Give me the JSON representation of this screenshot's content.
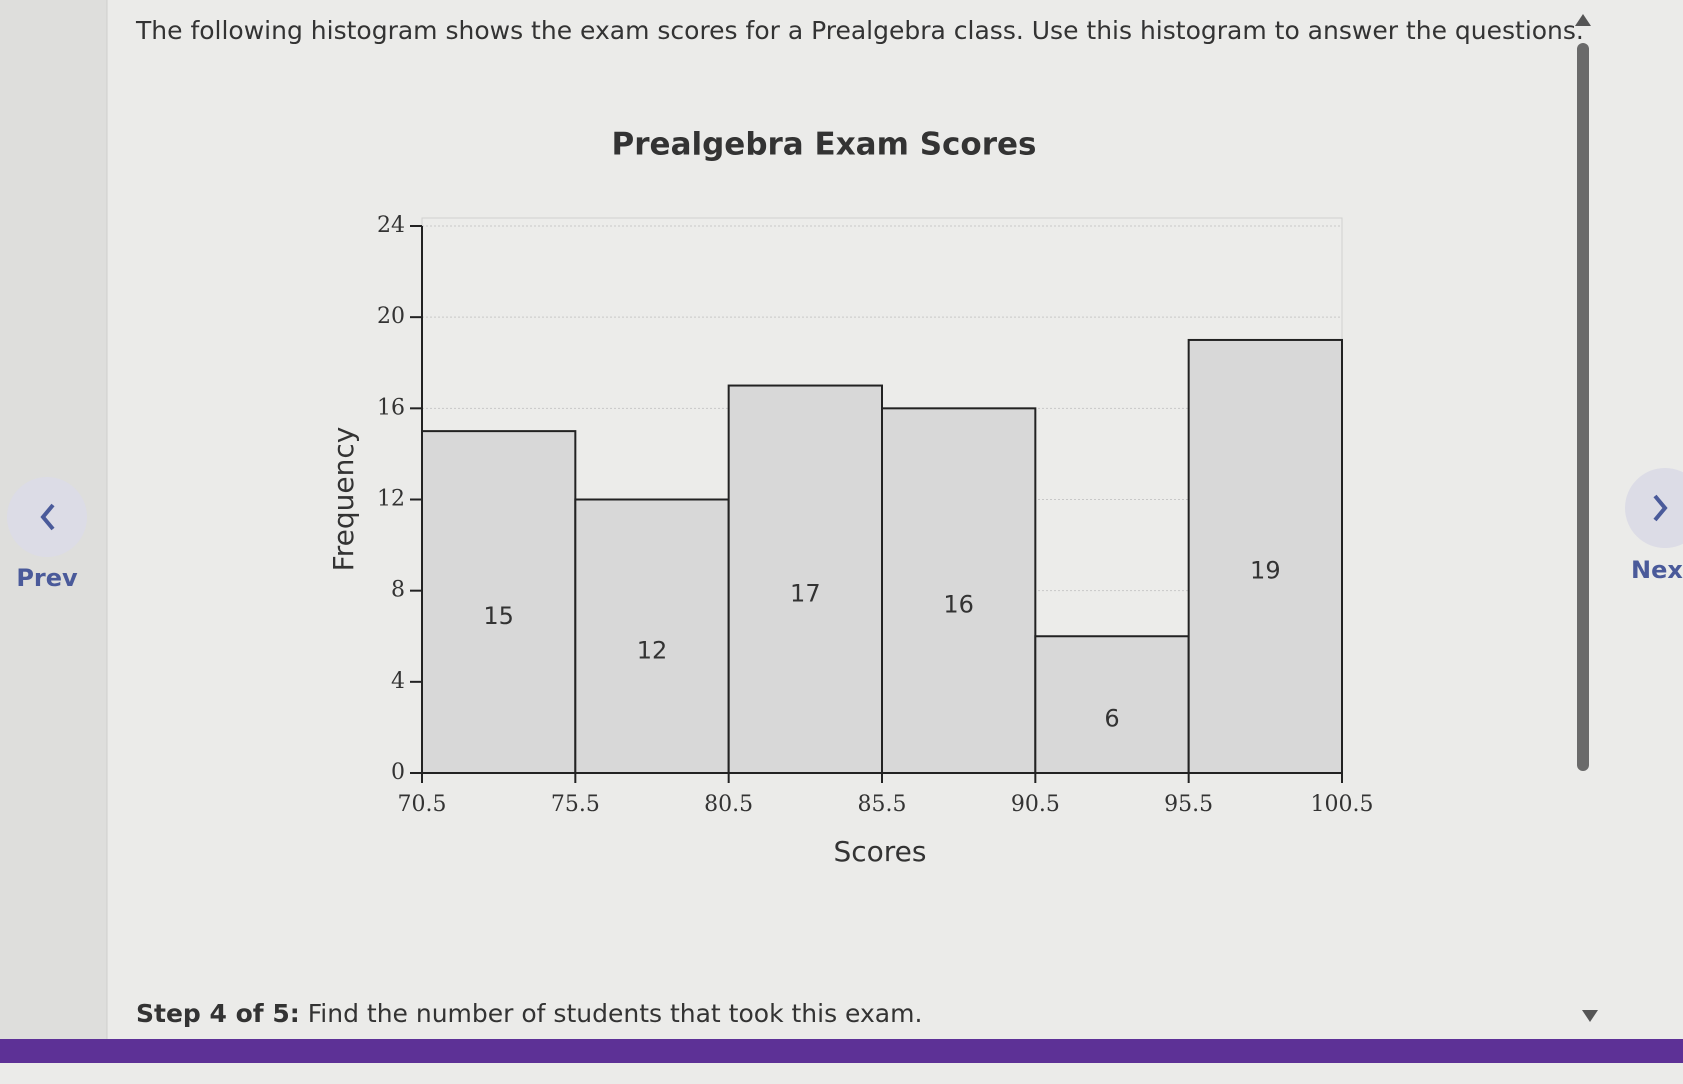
{
  "intro": "The following histogram shows the exam scores for a Prealgebra class. Use this histogram to answer the questions.",
  "chart_data": {
    "type": "histogram",
    "title": "Prealgebra Exam Scores",
    "x_label": "Scores",
    "y_label": "Frequency",
    "bins": [
      70.5,
      75.5,
      80.5,
      85.5,
      90.5,
      95.5,
      100.5
    ],
    "values": [
      15,
      12,
      17,
      16,
      6,
      19
    ],
    "xlim": [
      70.5,
      100.5
    ],
    "xticks": [
      70.5,
      75.5,
      80.5,
      85.5,
      90.5,
      95.5,
      100.5
    ],
    "ylim": [
      0,
      24
    ],
    "yticks": [
      0,
      4,
      8,
      12,
      16,
      20,
      24
    ],
    "grid": true,
    "color": "#d8d8d8"
  },
  "step": {
    "label": "Step 4 of 5:",
    "text": "Find the number of students that took this exam."
  },
  "nav": {
    "prev": "Prev",
    "next": "Nex"
  }
}
